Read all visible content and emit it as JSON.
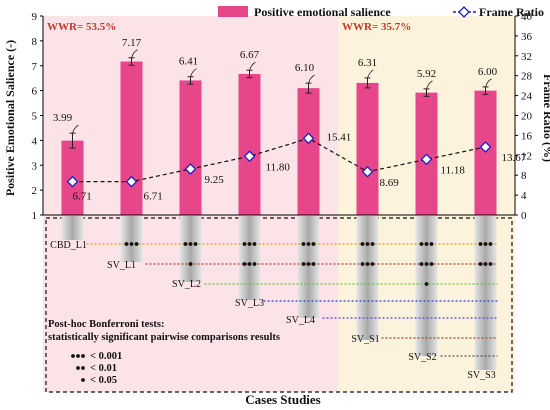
{
  "chart_data": {
    "type": "bar",
    "title": "",
    "xlabel": "Cases Studies",
    "ylabel": "Positive Emotional Salience (-)",
    "y2label": "Frame Ratio (%)",
    "ylim": [
      1,
      9
    ],
    "y2lim": [
      0,
      40
    ],
    "yticks": [
      "1",
      "2",
      "3",
      "4",
      "5",
      "6",
      "7",
      "8",
      "9"
    ],
    "y2ticks": [
      "0",
      "4",
      "8",
      "12",
      "16",
      "20",
      "24",
      "28",
      "32",
      "36",
      "40"
    ],
    "categories": [
      "CBD_L1",
      "SV_L1",
      "SV_L2",
      "SV_L3",
      "SV_L4",
      "SV_S1",
      "SV_S2",
      "SV_S3"
    ],
    "series": [
      {
        "name": "Positive emotional salience",
        "axis": "left",
        "values": [
          3.99,
          7.17,
          6.41,
          6.67,
          6.1,
          6.31,
          5.92,
          6.0
        ],
        "labels": [
          "3.99",
          "7.17",
          "6.41",
          "6.67",
          "6.10",
          "6.31",
          "5.92",
          "6.00"
        ],
        "error": [
          0.3,
          0.15,
          0.15,
          0.15,
          0.2,
          0.2,
          0.15,
          0.15
        ],
        "color": "#e8468b"
      },
      {
        "name": "Frame Ratio",
        "axis": "right",
        "values": [
          6.71,
          6.71,
          9.25,
          11.8,
          15.41,
          8.69,
          11.18,
          13.67
        ],
        "labels": [
          "6.71",
          "6.71",
          "9.25",
          "11.80",
          "15.41",
          "8.69",
          "11.18",
          "13.67"
        ],
        "color": "#1e1ec8"
      }
    ],
    "regions": [
      {
        "label": "WWR= 53.5%",
        "first": 0,
        "last": 4,
        "color": "#fbe3e8"
      },
      {
        "label": "WWR= 35.7%",
        "first": 5,
        "last": 7,
        "color": "#fdf3dc"
      }
    ],
    "pairwise": {
      "rows": [
        {
          "from": 0,
          "color": "#d4a017",
          "dots": [
            3,
            3,
            3,
            3,
            3,
            3,
            3
          ]
        },
        {
          "from": 1,
          "color": "#c0392b",
          "dots": [
            1,
            3,
            3,
            3,
            3,
            3
          ]
        },
        {
          "from": 2,
          "color": "#6bbf3a",
          "dots": [
            0,
            0,
            0,
            1,
            0
          ]
        },
        {
          "from": 3,
          "color": "#2f3fcf",
          "dots": [
            0,
            0,
            0,
            0
          ]
        },
        {
          "from": 4,
          "color": "#4a4ad0",
          "dots": [
            0,
            0,
            0
          ]
        },
        {
          "from": 5,
          "color": "#c0392b",
          "dots": [
            0,
            0
          ]
        },
        {
          "from": 6,
          "color": "#555555",
          "dots": [
            0
          ]
        }
      ]
    },
    "legend_box": {
      "title1": "Post-hoc Bonferroni tests:",
      "title2": "statistically significant pairwise comparisons results",
      "items": [
        {
          "dots": 3,
          "label": "< 0.001"
        },
        {
          "dots": 2,
          "label": "< 0.01"
        },
        {
          "dots": 1,
          "label": "< 0.05"
        }
      ]
    },
    "legend_position": "top"
  }
}
